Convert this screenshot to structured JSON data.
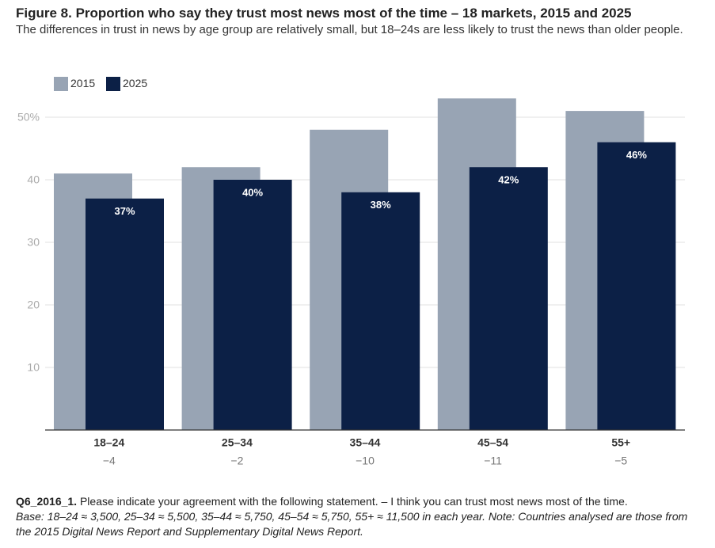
{
  "chart_data": {
    "type": "bar",
    "title": "Figure 8. Proportion who say they trust most news most of the time – 18 markets, 2015 and 2025",
    "subtitle": "The differences in trust in news by age group are relatively small, but 18–24s are less likely to trust the news than older people.",
    "categories": [
      "18–24",
      "25–34",
      "35–44",
      "45–54",
      "55+"
    ],
    "category_differences": [
      "−4",
      "−2",
      "−10",
      "−11",
      "−5"
    ],
    "series": [
      {
        "name": "2015",
        "color": "#98a4b4",
        "values": [
          41,
          42,
          48,
          53,
          51
        ]
      },
      {
        "name": "2025",
        "color": "#0c2046",
        "values": [
          37,
          40,
          38,
          42,
          46
        ],
        "value_labels": [
          "37%",
          "40%",
          "38%",
          "42%",
          "46%"
        ]
      }
    ],
    "ylim": [
      0,
      55
    ],
    "yticks": [
      10,
      20,
      30,
      40,
      {
        "value": 50,
        "label": "50%"
      }
    ],
    "grid": true
  },
  "footer": {
    "question_code": "Q6_2016_1.",
    "question": "Please indicate your agreement with the following statement. – I think you can trust most news most of the time.",
    "base": "Base: 18–24 ≈ 3,500, 25–34 ≈ 5,500, 35–44 ≈ 5,750, 45–54 ≈ 5,750, 55+ ≈ 11,500 in each year. Note: Countries analysed are those from the 2015 Digital News Report and Supplementary Digital News Report."
  }
}
